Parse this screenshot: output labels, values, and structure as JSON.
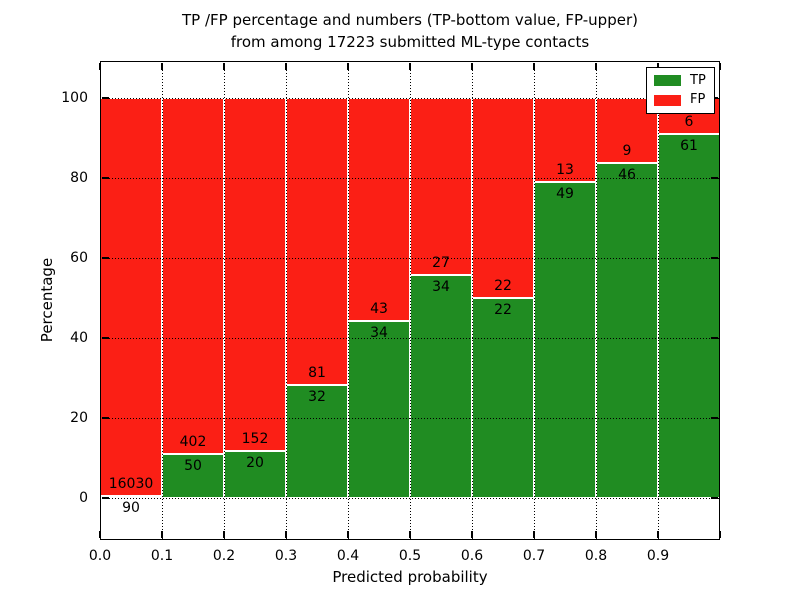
{
  "title": {
    "line1": "TP /FP percentage and numbers (TP-bottom value, FP-upper)",
    "line2": "from among 17223 submitted ML-type contacts"
  },
  "axes": {
    "xlabel": "Predicted probability",
    "ylabel": "Percentage",
    "xticks": [
      "0.0",
      "0.1",
      "0.2",
      "0.3",
      "0.4",
      "0.5",
      "0.6",
      "0.7",
      "0.8",
      "0.9"
    ],
    "yticks": [
      "0",
      "20",
      "40",
      "60",
      "80",
      "100"
    ]
  },
  "legend": {
    "items": [
      {
        "label": "TP",
        "color": "#208c22"
      },
      {
        "label": "FP",
        "color": "#fb1f15"
      }
    ]
  },
  "chart_data": {
    "type": "bar",
    "stacked": true,
    "normalized": "each bin totals 100%",
    "title": "TP /FP percentage and numbers (TP-bottom value, FP-upper) from among 17223 submitted ML-type contacts",
    "xlabel": "Predicted probability",
    "ylabel": "Percentage",
    "total_contacts": 17223,
    "bins": [
      "0.0-0.1",
      "0.1-0.2",
      "0.2-0.3",
      "0.3-0.4",
      "0.4-0.5",
      "0.5-0.6",
      "0.6-0.7",
      "0.7-0.8",
      "0.8-0.9",
      "0.9-1.0"
    ],
    "series": [
      {
        "name": "TP",
        "color": "#208c22",
        "counts": [
          90,
          50,
          20,
          32,
          34,
          34,
          22,
          49,
          46,
          61
        ]
      },
      {
        "name": "FP",
        "color": "#fb1f15",
        "counts": [
          16030,
          402,
          152,
          81,
          43,
          27,
          22,
          13,
          9,
          6
        ]
      }
    ],
    "tp_percent": [
      0.56,
      11.06,
      11.63,
      28.32,
      44.16,
      55.74,
      50.0,
      79.03,
      83.64,
      91.04
    ],
    "x_range": [
      0.0,
      1.0
    ],
    "ytick_values": [
      0,
      20,
      40,
      60,
      80,
      100
    ],
    "grid": true,
    "grid_style": "dotted",
    "legend_position": "upper right"
  }
}
